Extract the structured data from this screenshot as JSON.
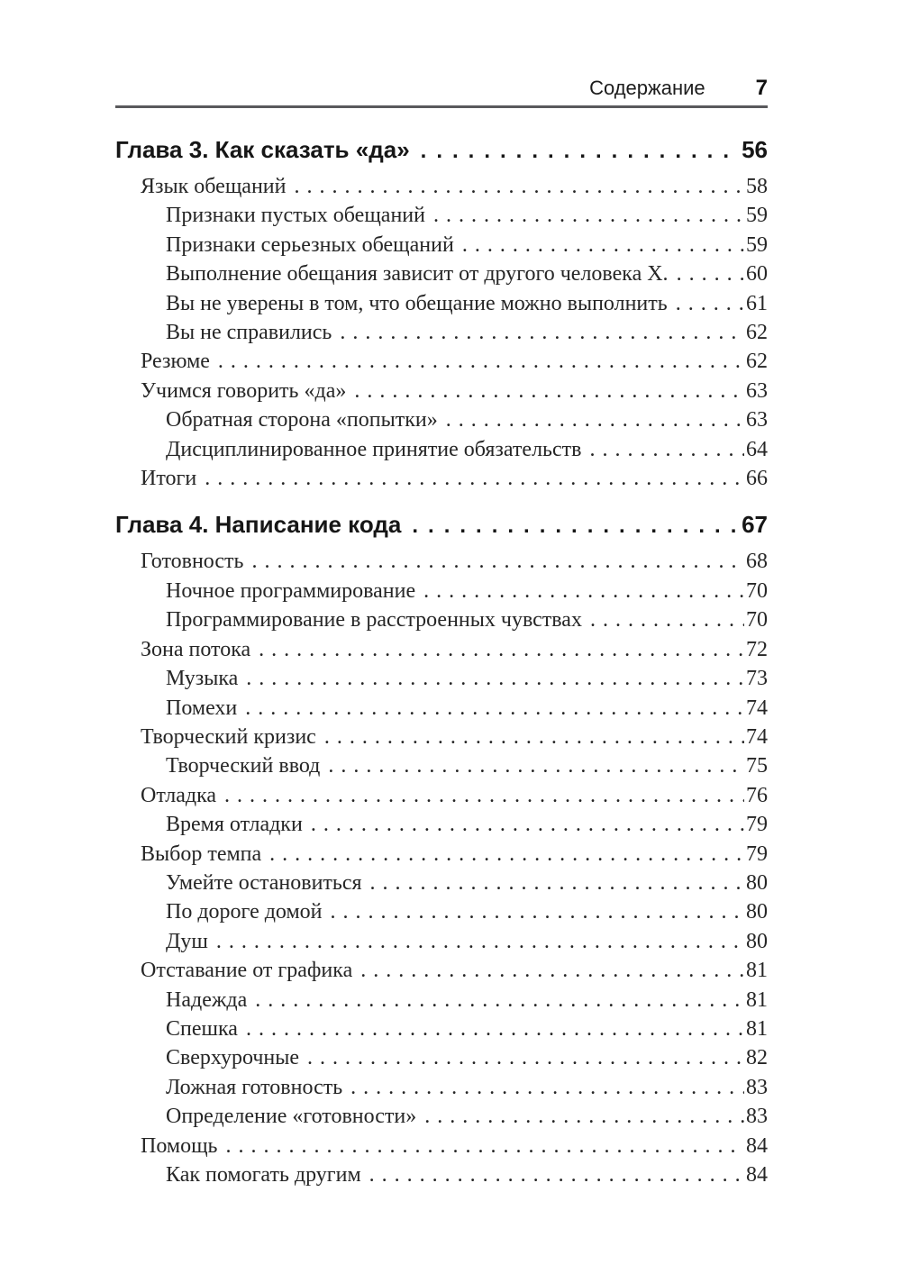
{
  "header": {
    "section_title": "Содержание",
    "page_number": "7"
  },
  "colors": {
    "rule": "#59595c",
    "text": "#262626",
    "heading_text": "#161616"
  },
  "toc": {
    "items": [
      {
        "type": "chapter",
        "level": 0,
        "label": "Глава 3. Как сказать «да»",
        "page": "56"
      },
      {
        "type": "entry",
        "level": 1,
        "label": "Язык обещаний",
        "page": "58"
      },
      {
        "type": "entry",
        "level": 2,
        "label": "Признаки пустых обещаний",
        "page": "59"
      },
      {
        "type": "entry",
        "level": 2,
        "label": "Признаки серьезных обещаний",
        "page": "59"
      },
      {
        "type": "entry",
        "level": 2,
        "label": "Выполнение обещания зависит от другого человека X.",
        "page": "60"
      },
      {
        "type": "entry",
        "level": 2,
        "label": "Вы не уверены в том, что обещание можно выполнить",
        "page": "61"
      },
      {
        "type": "entry",
        "level": 2,
        "label": "Вы не справились",
        "page": "62"
      },
      {
        "type": "entry",
        "level": 1,
        "label": "Резюме",
        "page": "62"
      },
      {
        "type": "entry",
        "level": 1,
        "label": "Учимся говорить «да»",
        "page": "63"
      },
      {
        "type": "entry",
        "level": 2,
        "label": "Обратная сторона «попытки»",
        "page": "63"
      },
      {
        "type": "entry",
        "level": 2,
        "label": "Дисциплинированное принятие обязательств",
        "page": "64"
      },
      {
        "type": "entry",
        "level": 1,
        "label": "Итоги",
        "page": "66"
      },
      {
        "type": "chapter",
        "level": 0,
        "label": "Глава 4. Написание кода",
        "page": "67"
      },
      {
        "type": "entry",
        "level": 1,
        "label": "Готовность",
        "page": "68"
      },
      {
        "type": "entry",
        "level": 2,
        "label": "Ночное программирование",
        "page": "70"
      },
      {
        "type": "entry",
        "level": 2,
        "label": "Программирование в расстроенных чувствах",
        "page": "70"
      },
      {
        "type": "entry",
        "level": 1,
        "label": "Зона потока",
        "page": "72"
      },
      {
        "type": "entry",
        "level": 2,
        "label": "Музыка",
        "page": "73"
      },
      {
        "type": "entry",
        "level": 2,
        "label": "Помехи",
        "page": "74"
      },
      {
        "type": "entry",
        "level": 1,
        "label": "Творческий кризис",
        "page": "74"
      },
      {
        "type": "entry",
        "level": 2,
        "label": "Творческий ввод",
        "page": "75"
      },
      {
        "type": "entry",
        "level": 1,
        "label": "Отладка",
        "page": "76"
      },
      {
        "type": "entry",
        "level": 2,
        "label": "Время отладки",
        "page": "79"
      },
      {
        "type": "entry",
        "level": 1,
        "label": "Выбор темпа",
        "page": "79"
      },
      {
        "type": "entry",
        "level": 2,
        "label": "Умейте остановиться",
        "page": "80"
      },
      {
        "type": "entry",
        "level": 2,
        "label": "По дороге домой",
        "page": "80"
      },
      {
        "type": "entry",
        "level": 2,
        "label": "Душ",
        "page": "80"
      },
      {
        "type": "entry",
        "level": 1,
        "label": "Отставание от графика",
        "page": "81"
      },
      {
        "type": "entry",
        "level": 2,
        "label": "Надежда",
        "page": "81"
      },
      {
        "type": "entry",
        "level": 2,
        "label": "Спешка",
        "page": "81"
      },
      {
        "type": "entry",
        "level": 2,
        "label": "Сверхурочные",
        "page": "82"
      },
      {
        "type": "entry",
        "level": 2,
        "label": "Ложная готовность",
        "page": "83"
      },
      {
        "type": "entry",
        "level": 2,
        "label": "Определение «готовности»",
        "page": "83"
      },
      {
        "type": "entry",
        "level": 1,
        "label": "Помощь",
        "page": "84"
      },
      {
        "type": "entry",
        "level": 2,
        "label": "Как помогать другим",
        "page": "84"
      }
    ]
  }
}
